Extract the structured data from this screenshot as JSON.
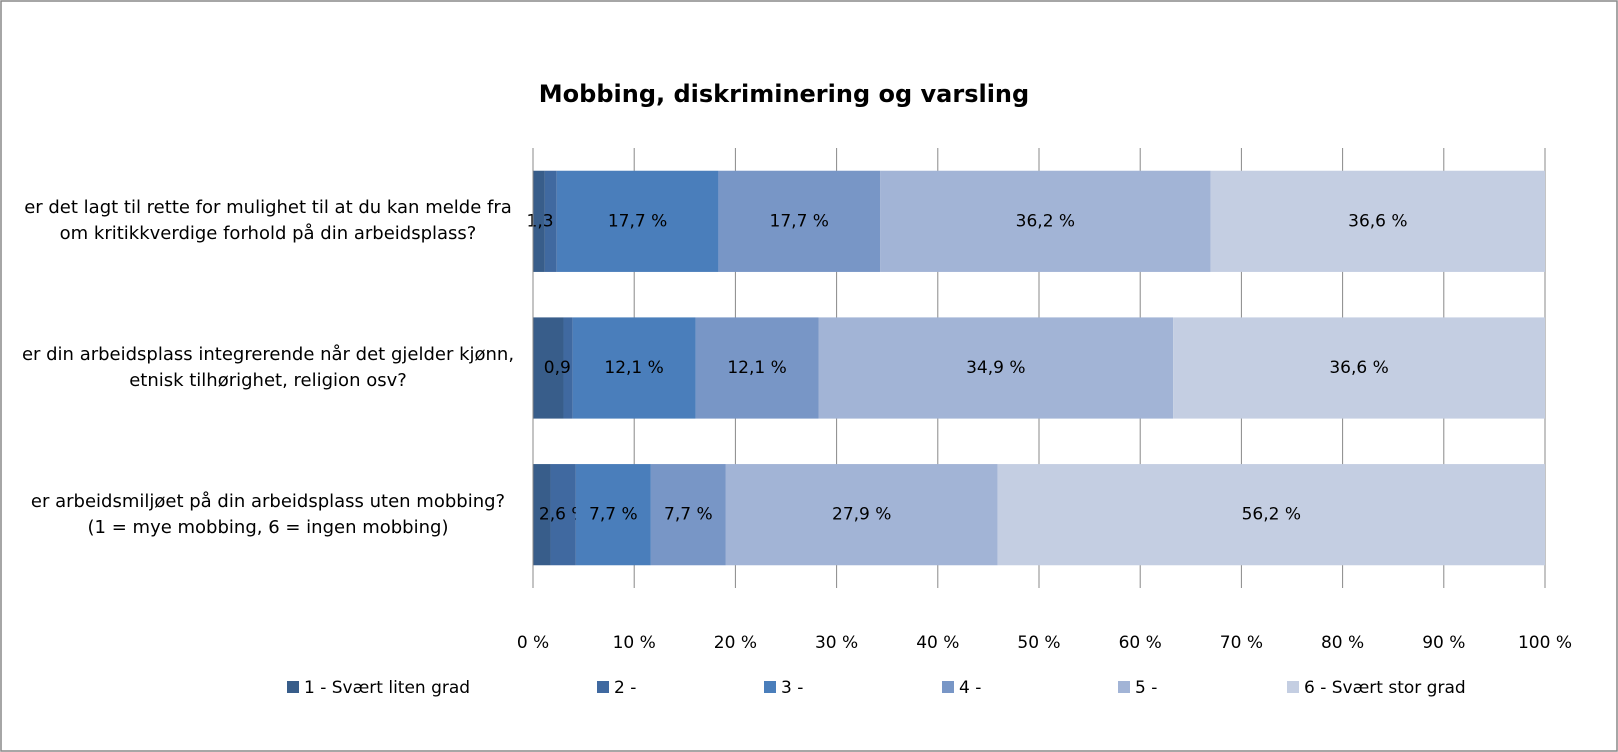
{
  "chart_data": {
    "type": "stacked_percent_barh",
    "title": "Mobbing, diskriminering og varsling",
    "categories": [
      "er det lagt til rette for mulighet til at du kan melde fra\nom kritikkverdige forhold på din arbeidsplass?",
      "er din arbeidsplass integrerende når det gjelder kjønn,\netnisk tilhørighet, religion osv?",
      "er arbeidsmiljøet på din arbeidsplass uten mobbing?\n(1 = mye mobbing, 6 = ingen mobbing)"
    ],
    "series": [
      {
        "name": "1 - Svært liten grad",
        "color": "#385d8a",
        "values": [
          1.3,
          3.0,
          1.8
        ],
        "value_labels": [
          null,
          null,
          null
        ]
      },
      {
        "name": "2 -",
        "color": "#4069a0",
        "values": [
          1.3,
          0.9,
          2.6
        ],
        "value_labels": [
          "1,3 %",
          "0,9 %",
          "2,6 %"
        ]
      },
      {
        "name": "3 -",
        "color": "#4a7ebb",
        "values": [
          17.7,
          12.1,
          7.7
        ],
        "value_labels": [
          "17,7 %",
          "12,1 %",
          "7,7 %"
        ]
      },
      {
        "name": "4 -",
        "color": "#7896c6",
        "values": [
          17.7,
          12.1,
          7.7
        ],
        "value_labels": [
          "17,7 %",
          "12,1 %",
          "7,7 %"
        ]
      },
      {
        "name": "5 -",
        "color": "#a2b4d6",
        "values": [
          36.2,
          34.9,
          27.9
        ],
        "value_labels": [
          "36,2 %",
          "34,9 %",
          "27,9 %"
        ]
      },
      {
        "name": "6 - Svært stor grad",
        "color": "#c4cee2",
        "values": [
          36.6,
          36.6,
          56.2
        ],
        "value_labels": [
          "36,6 %",
          "36,6 %",
          "56,2 %"
        ]
      }
    ],
    "xlim": [
      0,
      100
    ],
    "xticks": [
      {
        "value": 0,
        "label": "0 %"
      },
      {
        "value": 10,
        "label": "10 %"
      },
      {
        "value": 20,
        "label": "20 %"
      },
      {
        "value": 30,
        "label": "30 %"
      },
      {
        "value": 40,
        "label": "40 %"
      },
      {
        "value": 50,
        "label": "50 %"
      },
      {
        "value": 60,
        "label": "60 %"
      },
      {
        "value": 70,
        "label": "70 %"
      },
      {
        "value": 80,
        "label": "80 %"
      },
      {
        "value": 90,
        "label": "90 %"
      },
      {
        "value": 100,
        "label": "100 %"
      }
    ],
    "grid": true,
    "legend": "bottom"
  }
}
